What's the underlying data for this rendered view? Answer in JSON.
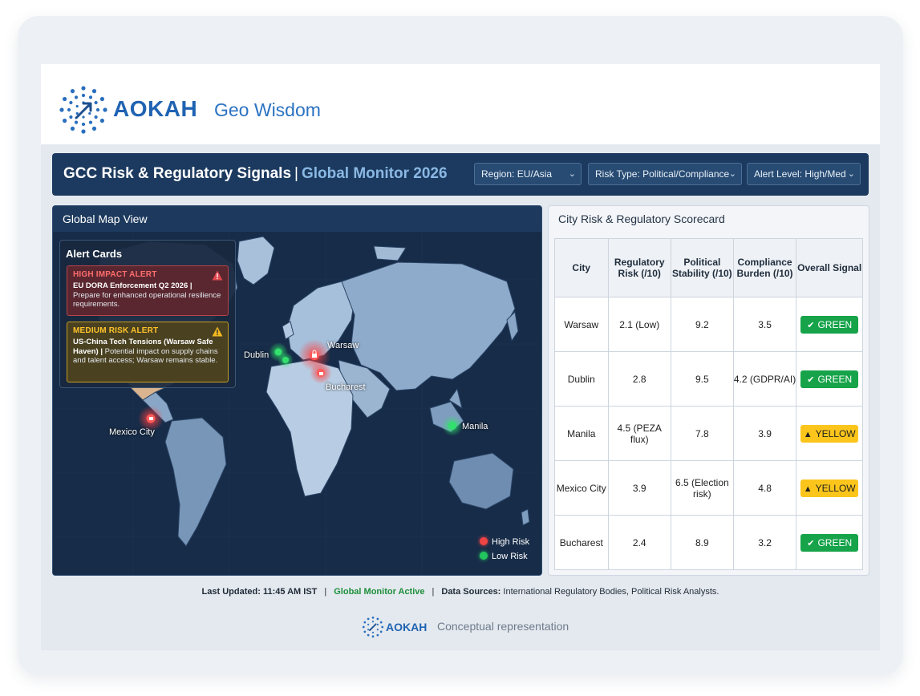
{
  "brand": {
    "name": "AOKAH",
    "subtitle": "Geo Wisdom",
    "accent": "#1f63b2"
  },
  "header": {
    "title": "GCC Risk & Regulatory Signals",
    "separator": "|",
    "subtitle": "Global Monitor 2026",
    "filters": [
      {
        "label": "Region: EU/Asia"
      },
      {
        "label": "Risk Type: Political/Compliance"
      },
      {
        "label": "Alert Level: High/Med"
      }
    ]
  },
  "map": {
    "title": "Global Map View",
    "alert_cards": {
      "title": "Alert Cards",
      "items": [
        {
          "level": "HIGH IMPACT ALERT",
          "headline": "EU DORA Enforcement Q2 2026 |",
          "detail": "Prepare for enhanced operational resilience requirements.",
          "color": "#d9434a"
        },
        {
          "level": "MEDIUM RISK ALERT",
          "headline": "US-China Tech Tensions (Warsaw Safe Haven) |",
          "detail": "Potential impact on supply chains and talent access; Warsaw remains stable.",
          "color": "#e0a81c"
        }
      ]
    },
    "markers": [
      {
        "city": "Warsaw",
        "risk": "high"
      },
      {
        "city": "Dublin",
        "risk": "low"
      },
      {
        "city": "Bucharest",
        "risk": "high"
      },
      {
        "city": "Mexico City",
        "risk": "high"
      },
      {
        "city": "Manila",
        "risk": "low"
      }
    ],
    "legend": [
      {
        "label": "High Risk",
        "color": "#ef4444"
      },
      {
        "label": "Low Risk",
        "color": "#22c55e"
      }
    ]
  },
  "scorecard": {
    "title": "City Risk & Regulatory Scorecard",
    "columns": [
      "City",
      "Regulatory Risk (/10)",
      "Political Stability (/10)",
      "Compliance Burden (/10)",
      "Overall Signal"
    ],
    "rows": [
      {
        "city": "Warsaw",
        "regulatory": "2.1 (Low)",
        "political": "9.2",
        "compliance": "3.5",
        "signal": "GREEN",
        "signal_type": "green"
      },
      {
        "city": "Dublin",
        "regulatory": "2.8",
        "political": "9.5",
        "compliance": "4.2 (GDPR/AI)",
        "signal": "GREEN",
        "signal_type": "green"
      },
      {
        "city": "Manila",
        "regulatory": "4.5 (PEZA flux)",
        "political": "7.8",
        "compliance": "3.9",
        "signal": "YELLOW",
        "signal_type": "yellow"
      },
      {
        "city": "Mexico City",
        "regulatory": "3.9",
        "political": "6.5 (Election risk)",
        "compliance": "4.8",
        "signal": "YELLOW",
        "signal_type": "yellow"
      },
      {
        "city": "Bucharest",
        "regulatory": "2.4",
        "political": "8.9",
        "compliance": "3.2",
        "signal": "GREEN",
        "signal_type": "green"
      }
    ]
  },
  "footer": {
    "updated_label": "Last Updated:",
    "updated_value": "11:45 AM IST",
    "status": "Global Monitor Active",
    "sources_label": "Data Sources:",
    "sources_value": "International Regulatory Bodies, Political Risk Analysts.",
    "credit_name": "AOKAH",
    "credit_text": "Conceptual representation"
  },
  "icons": {
    "logo": "aokah-dots-logo",
    "alert": "warning-triangle-icon",
    "check": "check-circle-icon",
    "marker": "lock-pin-icon",
    "chevron": "chevron-down-icon"
  }
}
